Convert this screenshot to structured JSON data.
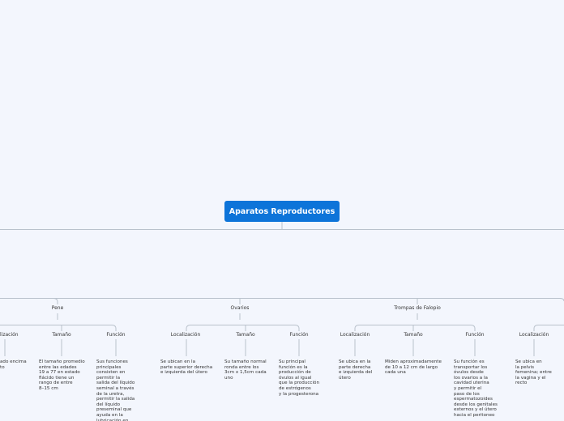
{
  "root": {
    "title": "Aparatos Reproductores"
  },
  "topics": {
    "pene": {
      "label": "Pene",
      "branches": {
        "localizacion": {
          "label": "lización",
          "text": "ado encima\nto"
        },
        "tamano": {
          "label": "Tamaño",
          "text": "El tamaño promedio\nentre las edades\n19 a 77 en estado\nflácido tiene un\nrango de entre\n8–15 cm"
        },
        "funcion": {
          "label": "Función",
          "text": "Sus funciones\nprincipales\nconsisten en\npermitir la\nsalida del líquido\nseminal a través\nde la uretra,\npermitir la salida\ndel líquido\npreseminal que\nayuda en la\nlubricación en"
        }
      }
    },
    "ovarios": {
      "label": "Ovarios",
      "branches": {
        "localizacion": {
          "label": "Localización",
          "text": "Se ubican en la\nparte superior derecha\ne izquierda del útero"
        },
        "tamano": {
          "label": "Tamaño",
          "text": "Su tamaño normal\nronda entre los\n3cm x 1,5cm cada\nuno"
        },
        "funcion": {
          "label": "Función",
          "text": "Su principal\nfunción es la\nproducción de\nóvulos al igual\nque la producción\nde estrógenos\ny la progesterona"
        }
      }
    },
    "trompas": {
      "label": "Trompas de Falopio",
      "branches": {
        "localizacion": {
          "label": "Localización",
          "text": "Se ubica en la\nparte derecha\ne izquierda del\nútero"
        },
        "tamano": {
          "label": "Tamaño",
          "text": "Miden aproximadamente\nde 10 a 12 cm de largo\ncada una"
        },
        "funcion": {
          "label": "Función",
          "text": "Su función es\ntransportar los\nóvulos desde\nlos ovarios a la\ncavidad uterina\ny permitir el\npaso de los\nespermatozoides\ndesde los genitales\nexternos y el útero\nhacia el peritoneo"
        }
      }
    },
    "next": {
      "branches": {
        "localizacion": {
          "label": "Localización",
          "text": "Se ubica en\nla pelvis\nfemenina; entre\nla vagina y el\nrecto"
        }
      }
    }
  }
}
